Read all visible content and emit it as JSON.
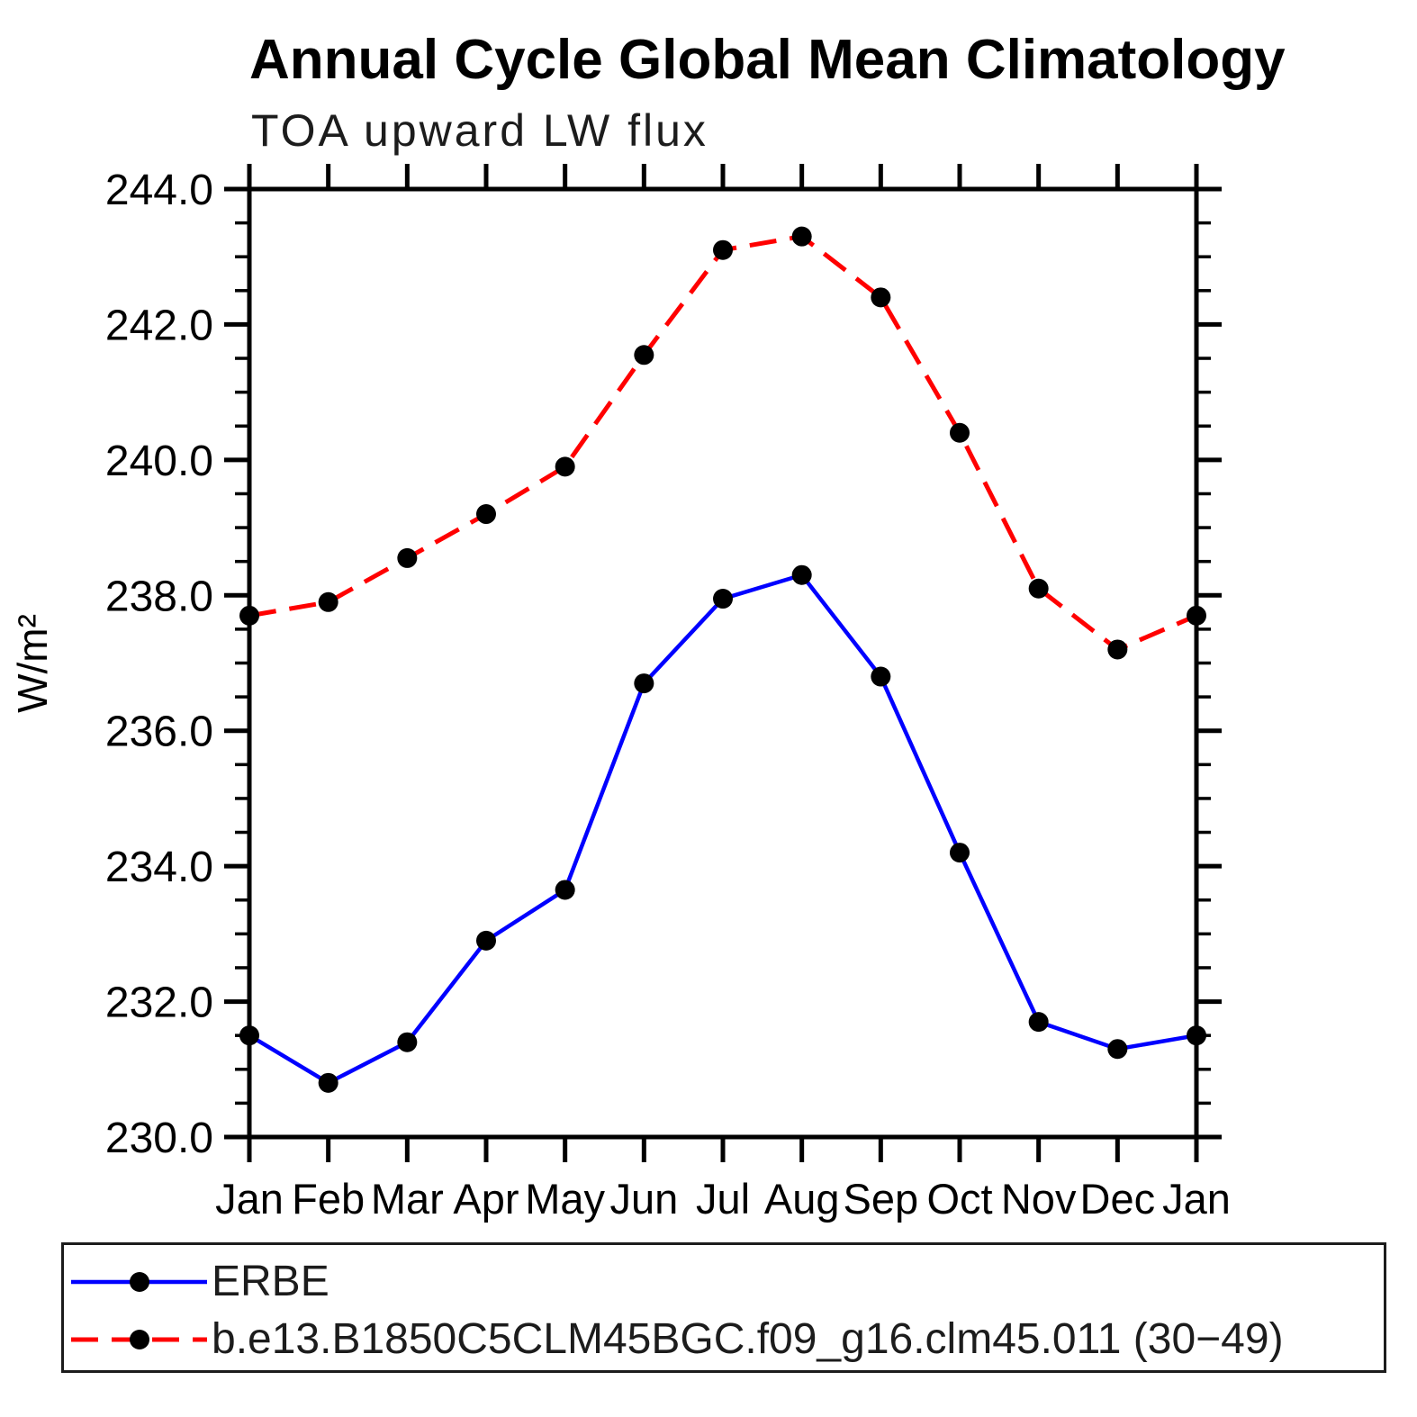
{
  "chart_data": {
    "type": "line",
    "title": "Annual Cycle Global Mean Climatology",
    "subtitle": "TOA upward LW flux",
    "ylabel": "W/m²",
    "xlabel": "",
    "categories": [
      "Jan",
      "Feb",
      "Mar",
      "Apr",
      "May",
      "Jun",
      "Jul",
      "Aug",
      "Sep",
      "Oct",
      "Nov",
      "Dec",
      "Jan"
    ],
    "ylim": [
      230.0,
      244.0
    ],
    "ytick_major": 2.0,
    "ytick_minor": 0.5,
    "yticklabels": [
      "230.0",
      "232.0",
      "234.0",
      "236.0",
      "238.0",
      "240.0",
      "242.0",
      "244.0"
    ],
    "grid": false,
    "legend_position": "bottom",
    "axis_color": "#000000",
    "background_color": "#ffffff",
    "marker_color": "#000000",
    "series": [
      {
        "name": "ERBE",
        "color": "#0000ff",
        "line_style": "solid",
        "marker": "circle",
        "values": [
          231.5,
          230.8,
          231.4,
          232.9,
          233.65,
          236.7,
          237.95,
          238.3,
          236.8,
          234.2,
          231.7,
          231.3,
          231.5
        ]
      },
      {
        "name": "b.e13.B1850C5CLM45BGC.f09_g16.clm45.011 (30−49)",
        "color": "#ff0000",
        "line_style": "dashed",
        "marker": "circle",
        "values": [
          237.7,
          237.9,
          238.55,
          239.2,
          239.9,
          241.55,
          243.1,
          243.3,
          242.4,
          240.4,
          238.1,
          237.2,
          237.7
        ]
      }
    ]
  }
}
